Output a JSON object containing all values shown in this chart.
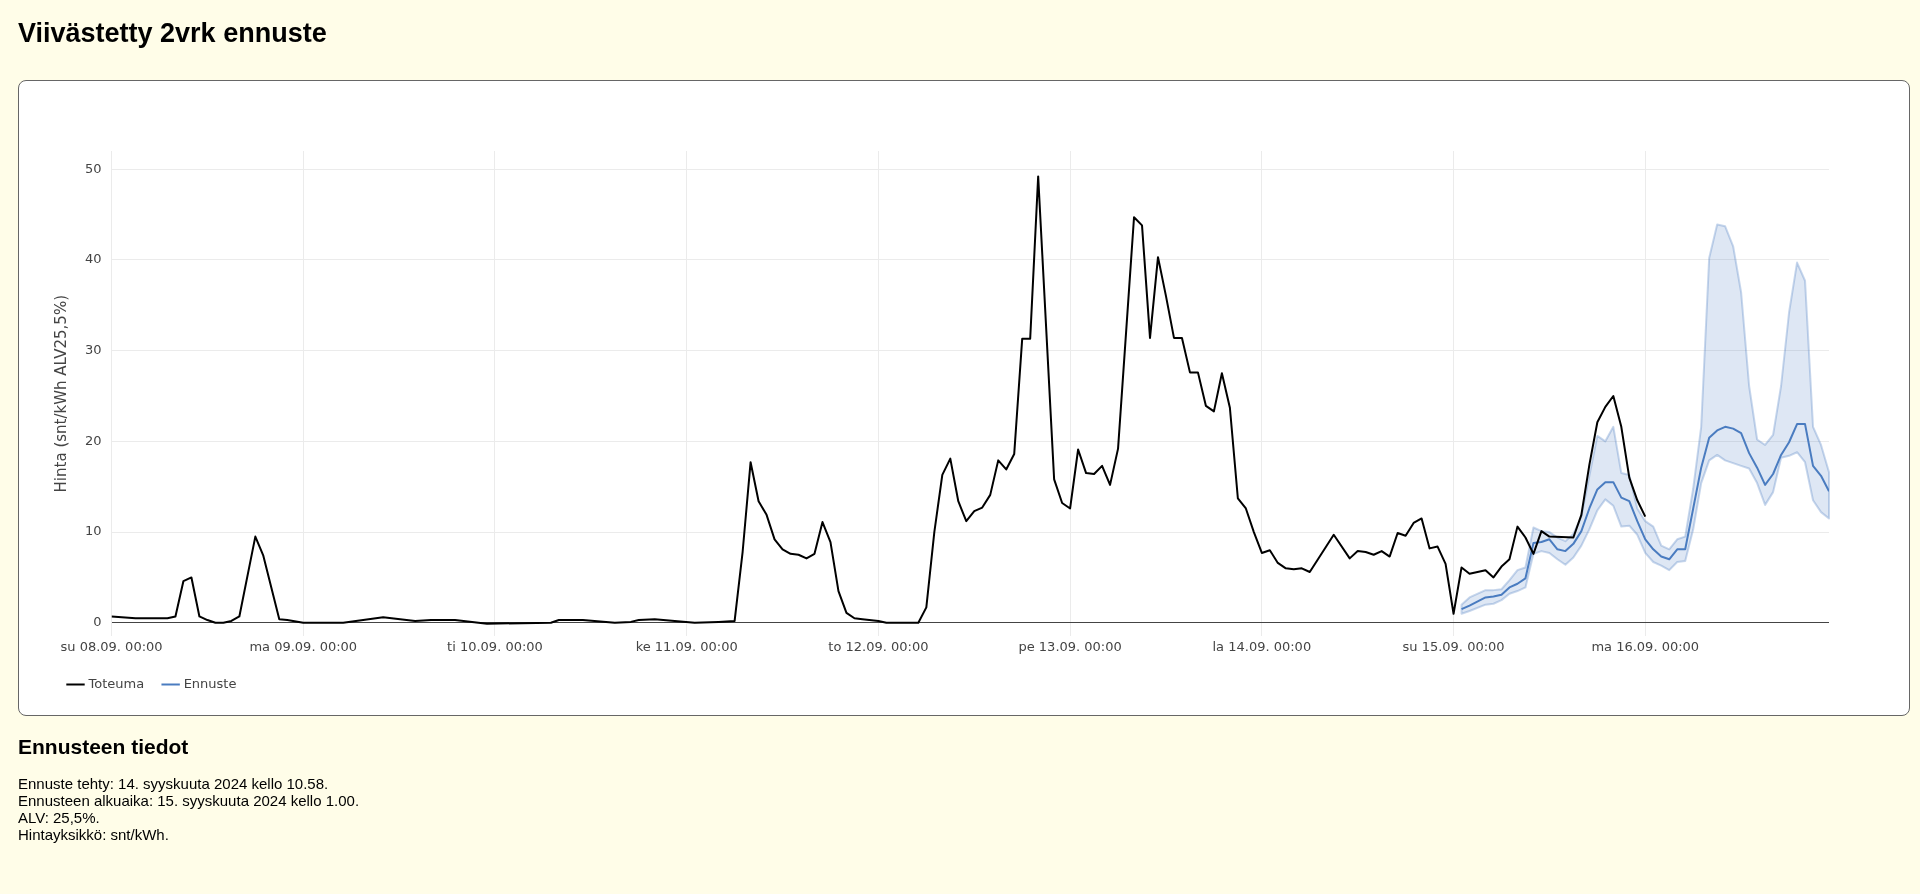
{
  "chart_data": {
    "type": "line",
    "title": "Viivästetty 2vrk ennuste",
    "ylabel": "Hinta (snt/kWh ALV25,5%)",
    "xlim": [
      "2024-09-08T00:00",
      "2024-09-16T23:00"
    ],
    "xticks": [
      {
        "value": "2024-09-08T00:00",
        "label": "su 08.09. 00:00"
      },
      {
        "value": "2024-09-09T00:00",
        "label": "ma 09.09. 00:00"
      },
      {
        "value": "2024-09-10T00:00",
        "label": "ti 10.09. 00:00"
      },
      {
        "value": "2024-09-11T00:00",
        "label": "ke 11.09. 00:00"
      },
      {
        "value": "2024-09-12T00:00",
        "label": "to 12.09. 00:00"
      },
      {
        "value": "2024-09-13T00:00",
        "label": "pe 13.09. 00:00"
      },
      {
        "value": "2024-09-14T00:00",
        "label": "la 14.09. 00:00"
      },
      {
        "value": "2024-09-15T00:00",
        "label": "su 15.09. 00:00"
      },
      {
        "value": "2024-09-16T00:00",
        "label": "ma 16.09. 00:00"
      }
    ],
    "ylim": [
      -1.5,
      52
    ],
    "yticks": [
      0,
      10,
      20,
      30,
      40,
      50
    ],
    "grid": true,
    "legend": "bottom left",
    "marker": "none",
    "line_style": "solid",
    "series": [
      {
        "name": "Toteuma",
        "color": "#000000",
        "x": [
          "2024-09-08T00:00",
          "2024-09-08T03:00",
          "2024-09-08T07:00",
          "2024-09-08T08:00",
          "2024-09-08T09:00",
          "2024-09-08T10:00",
          "2024-09-08T11:00",
          "2024-09-08T12:00",
          "2024-09-08T13:00",
          "2024-09-08T14:00",
          "2024-09-08T15:00",
          "2024-09-08T16:00",
          "2024-09-08T18:00",
          "2024-09-08T19:00",
          "2024-09-08T21:00",
          "2024-09-08T22:00",
          "2024-09-09T00:00",
          "2024-09-09T05:00",
          "2024-09-09T10:00",
          "2024-09-09T14:00",
          "2024-09-09T16:00",
          "2024-09-09T19:00",
          "2024-09-09T23:00",
          "2024-09-10T07:00",
          "2024-09-10T08:00",
          "2024-09-10T11:00",
          "2024-09-10T15:00",
          "2024-09-10T17:00",
          "2024-09-10T18:00",
          "2024-09-10T20:00",
          "2024-09-11T01:00",
          "2024-09-11T04:00",
          "2024-09-11T06:00",
          "2024-09-11T07:00",
          "2024-09-11T08:00",
          "2024-09-11T09:00",
          "2024-09-11T10:00",
          "2024-09-11T11:00",
          "2024-09-11T12:00",
          "2024-09-11T13:00",
          "2024-09-11T14:00",
          "2024-09-11T15:00",
          "2024-09-11T16:00",
          "2024-09-11T17:00",
          "2024-09-11T18:00",
          "2024-09-11T19:00",
          "2024-09-11T20:00",
          "2024-09-11T21:00",
          "2024-09-11T22:00",
          "2024-09-12T00:00",
          "2024-09-12T01:00",
          "2024-09-12T05:00",
          "2024-09-12T06:00",
          "2024-09-12T07:00",
          "2024-09-12T08:00",
          "2024-09-12T09:00",
          "2024-09-12T10:00",
          "2024-09-12T11:00",
          "2024-09-12T12:00",
          "2024-09-12T13:00",
          "2024-09-12T14:00",
          "2024-09-12T15:00",
          "2024-09-12T16:00",
          "2024-09-12T17:00",
          "2024-09-12T18:00",
          "2024-09-12T19:00",
          "2024-09-12T20:00",
          "2024-09-12T22:00",
          "2024-09-12T23:00",
          "2024-09-13T00:00",
          "2024-09-13T01:00",
          "2024-09-13T02:00",
          "2024-09-13T03:00",
          "2024-09-13T04:00",
          "2024-09-13T05:00",
          "2024-09-13T06:00",
          "2024-09-13T08:00",
          "2024-09-13T09:00",
          "2024-09-13T10:00",
          "2024-09-13T11:00",
          "2024-09-13T12:00",
          "2024-09-13T13:00",
          "2024-09-13T14:00",
          "2024-09-13T15:00",
          "2024-09-13T16:00",
          "2024-09-13T17:00",
          "2024-09-13T18:00",
          "2024-09-13T19:00",
          "2024-09-13T20:00",
          "2024-09-13T21:00",
          "2024-09-13T22:00",
          "2024-09-13T23:00",
          "2024-09-14T00:00",
          "2024-09-14T01:00",
          "2024-09-14T02:00",
          "2024-09-14T03:00",
          "2024-09-14T04:00",
          "2024-09-14T05:00",
          "2024-09-14T06:00",
          "2024-09-14T09:00",
          "2024-09-14T11:00",
          "2024-09-14T12:00",
          "2024-09-14T13:00",
          "2024-09-14T14:00",
          "2024-09-14T15:00",
          "2024-09-14T16:00",
          "2024-09-14T17:00",
          "2024-09-14T18:00",
          "2024-09-14T19:00",
          "2024-09-14T20:00",
          "2024-09-14T21:00",
          "2024-09-14T22:00",
          "2024-09-14T23:00",
          "2024-09-15T00:00",
          "2024-09-15T01:00",
          "2024-09-15T02:00",
          "2024-09-15T04:00",
          "2024-09-15T05:00",
          "2024-09-15T06:00",
          "2024-09-15T07:00",
          "2024-09-15T08:00",
          "2024-09-15T09:00",
          "2024-09-15T10:00",
          "2024-09-15T11:00",
          "2024-09-15T12:00",
          "2024-09-15T15:00",
          "2024-09-15T16:00",
          "2024-09-15T17:00",
          "2024-09-15T18:00",
          "2024-09-15T19:00",
          "2024-09-15T20:00",
          "2024-09-15T21:00",
          "2024-09-15T22:00",
          "2024-09-15T23:00",
          "2024-09-16T00:00"
        ],
        "values": [
          0.7,
          0.5,
          0.5,
          0.7,
          4.6,
          5.0,
          0.7,
          0.3,
          0.0,
          0.0,
          0.2,
          0.7,
          9.5,
          7.4,
          0.4,
          0.3,
          0.0,
          0.0,
          0.6,
          0.2,
          0.3,
          0.3,
          -0.1,
          0.0,
          0.3,
          0.3,
          0.0,
          0.1,
          0.3,
          0.4,
          0.0,
          0.1,
          0.2,
          7.8,
          17.7,
          13.4,
          11.9,
          9.2,
          8.1,
          7.6,
          7.5,
          7.1,
          7.6,
          11.1,
          8.9,
          3.5,
          1.1,
          0.5,
          0.4,
          0.2,
          0.0,
          0.0,
          1.7,
          10.0,
          16.3,
          18.1,
          13.4,
          11.2,
          12.3,
          12.7,
          14.1,
          17.9,
          16.9,
          18.6,
          31.3,
          31.3,
          49.2,
          15.8,
          13.2,
          12.6,
          19.1,
          16.5,
          16.4,
          17.3,
          15.2,
          19.2,
          44.7,
          43.8,
          31.4,
          40.3,
          36.0,
          31.4,
          31.4,
          27.6,
          27.6,
          23.9,
          23.3,
          27.5,
          23.7,
          13.7,
          12.6,
          10.0,
          7.7,
          8.0,
          6.6,
          6.0,
          5.9,
          6.0,
          5.6,
          9.7,
          7.1,
          7.9,
          7.8,
          7.5,
          7.9,
          7.3,
          9.9,
          9.6,
          11.0,
          11.5,
          8.2,
          8.4,
          6.5,
          1.0,
          6.1,
          5.4,
          5.8,
          5.0,
          6.2,
          7.0,
          10.6,
          9.4,
          7.6,
          10.1,
          9.5,
          9.4,
          11.9,
          17.4,
          22.1,
          23.8,
          25.0,
          21.6,
          16.0,
          13.5,
          11.7
        ]
      },
      {
        "name": "Ennuste",
        "color": "#4a7cc0",
        "x": [
          "2024-09-15T01:00",
          "2024-09-15T02:00",
          "2024-09-15T04:00",
          "2024-09-15T05:00",
          "2024-09-15T06:00",
          "2024-09-15T07:00",
          "2024-09-15T08:00",
          "2024-09-15T09:00",
          "2024-09-15T10:00",
          "2024-09-15T11:00",
          "2024-09-15T12:00",
          "2024-09-15T13:00",
          "2024-09-15T14:00",
          "2024-09-15T15:00",
          "2024-09-15T16:00",
          "2024-09-15T17:00",
          "2024-09-15T18:00",
          "2024-09-15T19:00",
          "2024-09-15T20:00",
          "2024-09-15T21:00",
          "2024-09-15T22:00",
          "2024-09-15T23:00",
          "2024-09-16T00:00",
          "2024-09-16T01:00",
          "2024-09-16T02:00",
          "2024-09-16T03:00",
          "2024-09-16T04:00",
          "2024-09-16T05:00",
          "2024-09-16T06:00",
          "2024-09-16T07:00",
          "2024-09-16T08:00",
          "2024-09-16T09:00",
          "2024-09-16T10:00",
          "2024-09-16T11:00",
          "2024-09-16T12:00",
          "2024-09-16T13:00",
          "2024-09-16T14:00",
          "2024-09-16T15:00",
          "2024-09-16T16:00",
          "2024-09-16T17:00",
          "2024-09-16T18:00",
          "2024-09-16T19:00",
          "2024-09-16T20:00",
          "2024-09-16T21:00",
          "2024-09-16T22:00",
          "2024-09-16T23:00"
        ],
        "values": [
          1.5,
          1.9,
          2.8,
          2.9,
          3.1,
          3.9,
          4.3,
          4.9,
          8.8,
          8.9,
          9.2,
          8.1,
          7.9,
          8.7,
          10.1,
          12.6,
          14.7,
          15.5,
          15.5,
          13.8,
          13.4,
          11.2,
          9.2,
          8.1,
          7.3,
          7.0,
          8.1,
          8.1,
          12.6,
          17.1,
          20.4,
          21.2,
          21.6,
          21.4,
          20.9,
          18.7,
          17.1,
          15.2,
          16.4,
          18.5,
          19.9,
          21.9,
          21.9,
          17.3,
          16.2,
          14.5
        ],
        "lower": [
          1.0,
          1.3,
          2.0,
          2.1,
          2.5,
          3.2,
          3.5,
          3.9,
          7.6,
          7.9,
          7.7,
          7.0,
          6.4,
          7.2,
          8.5,
          10.3,
          12.4,
          13.6,
          12.9,
          10.6,
          10.7,
          9.7,
          7.7,
          6.7,
          6.3,
          5.8,
          6.7,
          6.8,
          10.3,
          15.4,
          17.9,
          18.5,
          17.9,
          17.6,
          17.3,
          17.0,
          15.4,
          13.0,
          14.4,
          18.2,
          18.4,
          18.8,
          17.7,
          13.5,
          12.2,
          11.5
        ],
        "upper": [
          2.0,
          2.8,
          3.6,
          3.6,
          3.7,
          4.7,
          5.8,
          6.1,
          10.5,
          10.1,
          10.0,
          9.4,
          9.0,
          9.8,
          11.7,
          16.2,
          20.6,
          20.0,
          21.6,
          16.5,
          16.3,
          12.6,
          11.2,
          10.6,
          8.5,
          8.1,
          9.2,
          9.5,
          14.8,
          21.6,
          40.2,
          43.9,
          43.7,
          41.5,
          36.4,
          26.1,
          20.2,
          19.6,
          20.7,
          26.1,
          34.2,
          39.7,
          37.7,
          21.6,
          19.6,
          16.6
        ]
      }
    ],
    "annotations": [
      "Ennusteen tiedot",
      "Ennuste tehty: 14. syyskuuta 2024 kello 10.58.",
      "Ennusteen alkuaika: 15. syyskuuta 2024 kello 1.00.",
      "ALV: 25,5%.",
      "Hintayksikkö: snt/kWh."
    ]
  }
}
